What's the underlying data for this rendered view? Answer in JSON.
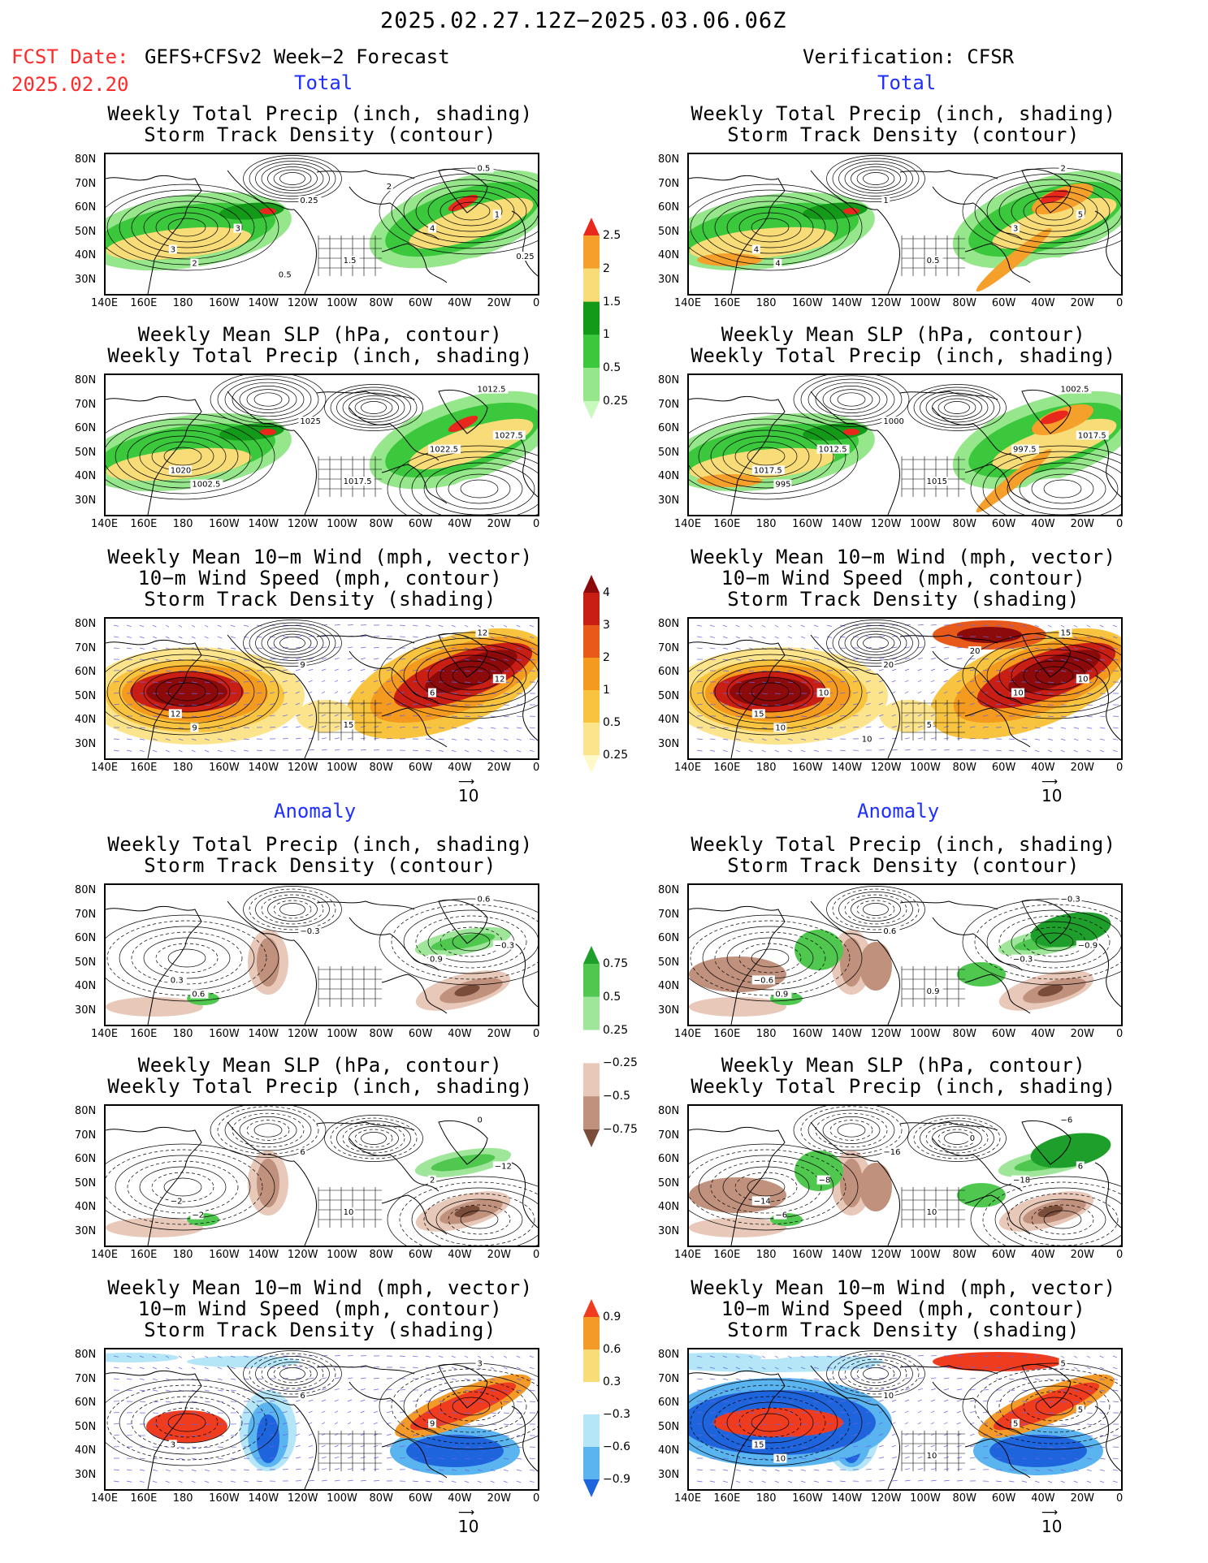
{
  "header": {
    "period": "2025.02.27.12Z−2025.03.06.06Z",
    "fcst_date_label": "FCST Date:",
    "fcst_model": "GEFS+CFSv2 Week−2 Forecast",
    "fcst_date": "2025.02.20",
    "verification": "Verification: CFSR"
  },
  "sections": {
    "total": "Total",
    "anomaly": "Anomaly"
  },
  "panel_titles": {
    "precip_storm": [
      "Weekly Total Precip (inch, shading)",
      "Storm Track Density (contour)"
    ],
    "slp_precip": [
      "Weekly Mean SLP (hPa, contour)",
      "Weekly Total Precip (inch, shading)"
    ],
    "wind_storm": [
      "Weekly Mean 10−m Wind (mph, vector)",
      "10−m Wind Speed (mph, contour)",
      "Storm Track Density (shading)"
    ]
  },
  "axes": {
    "lat_labels": [
      "80N",
      "70N",
      "60N",
      "50N",
      "40N",
      "30N"
    ],
    "lon_labels": [
      "140E",
      "160E",
      "180",
      "160W",
      "140W",
      "120W",
      "100W",
      "80W",
      "60W",
      "40W",
      "20W",
      "0"
    ]
  },
  "vector_reference": "10",
  "colorbars": {
    "precip_total": {
      "labels": [
        "2.5",
        "2",
        "1.5",
        "1",
        "0.5",
        "0.25"
      ],
      "colors": [
        "#e8281c",
        "#f4a02a",
        "#f8dc78",
        "#129a18",
        "#3cc83c",
        "#96e68c",
        "#c8fac0"
      ]
    },
    "storm_total": {
      "labels": [
        "4",
        "3",
        "2",
        "1",
        "0.5",
        "0.25"
      ],
      "colors": [
        "#8c0a0a",
        "#c81e14",
        "#e85a1a",
        "#f49a1e",
        "#f8c440",
        "#fce48c",
        "#fff8c8"
      ]
    },
    "precip_anom": {
      "labels": [
        "0.75",
        "0.5",
        "0.25",
        "−0.25",
        "−0.5",
        "−0.75"
      ],
      "colors": [
        "#1e9e2a",
        "#50c850",
        "#a0e69a",
        "#ffffff",
        "#e8c8b8",
        "#c0917c",
        "#7a4c3a"
      ]
    },
    "storm_anom": {
      "labels": [
        "0.9",
        "0.6",
        "0.3",
        "−0.3",
        "−0.6",
        "−0.9"
      ],
      "colors": [
        "#f03c1e",
        "#f49a28",
        "#f8dc78",
        "#ffffff",
        "#b4e6f8",
        "#5ab4f0",
        "#1e64dc"
      ]
    },
    "tail_color": "#8a8a8a"
  },
  "map_colors": {
    "land_line": "#000000",
    "contour": "#000000",
    "vector": "#6464e6"
  },
  "contour_labels": {
    "l1": [
      "0.5",
      "0.25",
      "4",
      "3",
      "2",
      "1",
      "1.5",
      "3",
      "2",
      "0.5",
      "0.25"
    ],
    "r1": [
      "2",
      "1",
      "3",
      "4",
      "4",
      "5",
      "0.5"
    ],
    "l2": [
      "1012.5",
      "1025",
      "1022.5",
      "1020",
      "1002.5",
      "1027.5",
      "1017.5"
    ],
    "r2": [
      "1002.5",
      "1000",
      "997.5",
      "1017.5",
      "995",
      "1017.5",
      "1015",
      "1012.5"
    ],
    "l3": [
      "12",
      "9",
      "6",
      "12",
      "9",
      "12",
      "15"
    ],
    "r3": [
      "15",
      "20",
      "10",
      "15",
      "10",
      "10",
      "5",
      "10",
      "20",
      "10"
    ],
    "l4": [
      "0.6",
      "−0.3",
      "0.9",
      "0.3",
      "0.6",
      "−0.3"
    ],
    "r4": [
      "−0.3",
      "0.6",
      "−0.3",
      "−0.6",
      "0.9",
      "−0.9",
      "0.9"
    ],
    "l5": [
      "0",
      "6",
      "2",
      "−2",
      "−2",
      "−12",
      "10"
    ],
    "r5": [
      "−6",
      "−16",
      "−18",
      "−14",
      "−6",
      "6",
      "10",
      "−8",
      "0"
    ],
    "l6": [
      "3",
      "6",
      "9",
      "3"
    ],
    "r6": [
      "5",
      "10",
      "5",
      "15",
      "10",
      "5",
      "10"
    ]
  }
}
